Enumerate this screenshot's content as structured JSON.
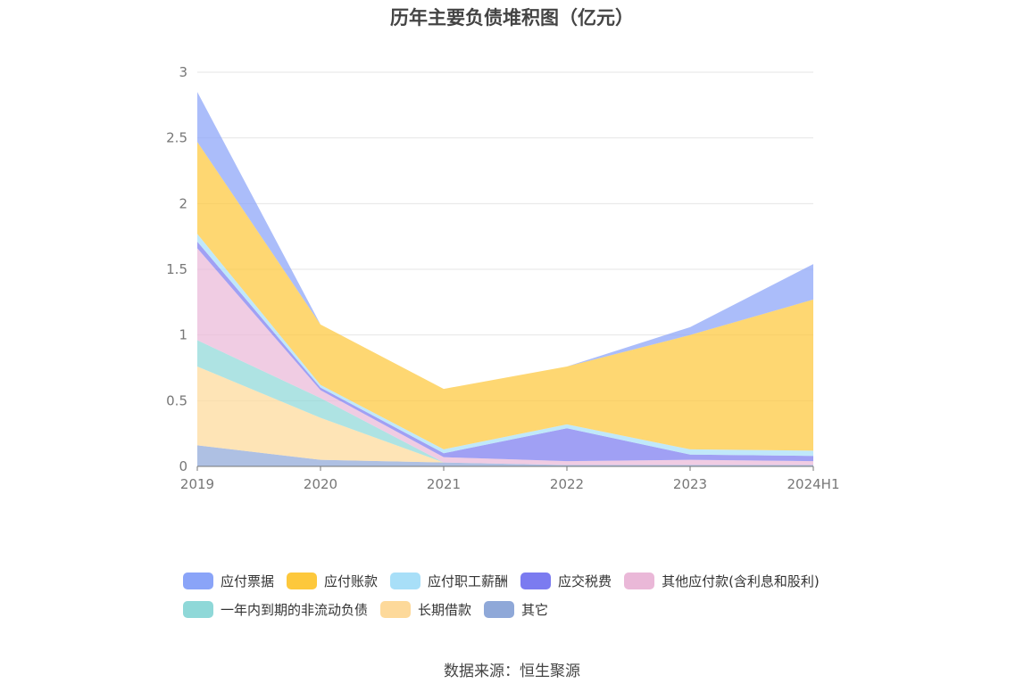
{
  "chart_data": {
    "type": "area",
    "title": "历年主要负债堆积图（亿元）",
    "xlabel": "",
    "ylabel": "",
    "categories": [
      "2019",
      "2020",
      "2021",
      "2022",
      "2023",
      "2024H1"
    ],
    "ylim": [
      0,
      3
    ],
    "yticks": [
      "0",
      "0.5",
      "1",
      "1.5",
      "2",
      "2.5",
      "3"
    ],
    "grid": true,
    "legend_position": "bottom",
    "stacked": true,
    "series": [
      {
        "name": "其它",
        "color": "#8fa8d8",
        "values": [
          0.16,
          0.05,
          0.03,
          0.01,
          0.01,
          0.01
        ]
      },
      {
        "name": "长期借款",
        "color": "#fdd99a",
        "values": [
          0.6,
          0.32,
          0.0,
          0.0,
          0.0,
          0.0
        ]
      },
      {
        "name": "一年内到期的非流动负债",
        "color": "#8fd8d8",
        "values": [
          0.2,
          0.15,
          0.0,
          0.0,
          0.0,
          0.0
        ]
      },
      {
        "name": "其他应付款(含利息和股利)",
        "color": "#eab8d8",
        "values": [
          0.7,
          0.06,
          0.04,
          0.03,
          0.04,
          0.03
        ]
      },
      {
        "name": "应交税费",
        "color": "#7b7bf0",
        "values": [
          0.05,
          0.02,
          0.03,
          0.25,
          0.04,
          0.04
        ]
      },
      {
        "name": "应付职工薪酬",
        "color": "#a8dff8",
        "values": [
          0.06,
          0.02,
          0.03,
          0.03,
          0.04,
          0.04
        ]
      },
      {
        "name": "应付账款",
        "color": "#fdc83c",
        "values": [
          0.7,
          0.46,
          0.46,
          0.44,
          0.87,
          1.15
        ]
      },
      {
        "name": "应付票据",
        "color": "#8aa4f8",
        "values": [
          0.38,
          0.0,
          0.0,
          0.0,
          0.06,
          0.27
        ]
      }
    ]
  },
  "legend": [
    {
      "label": "应付票据",
      "color": "#8aa4f8"
    },
    {
      "label": "应付账款",
      "color": "#fdc83c"
    },
    {
      "label": "应付职工薪酬",
      "color": "#a8dff8"
    },
    {
      "label": "应交税费",
      "color": "#7b7bf0"
    },
    {
      "label": "其他应付款(含利息和股利)",
      "color": "#eab8d8"
    },
    {
      "label": "一年内到期的非流动负债",
      "color": "#8fd8d8"
    },
    {
      "label": "长期借款",
      "color": "#fdd99a"
    },
    {
      "label": "其它",
      "color": "#8fa8d8"
    }
  ],
  "source": "数据来源：恒生聚源"
}
